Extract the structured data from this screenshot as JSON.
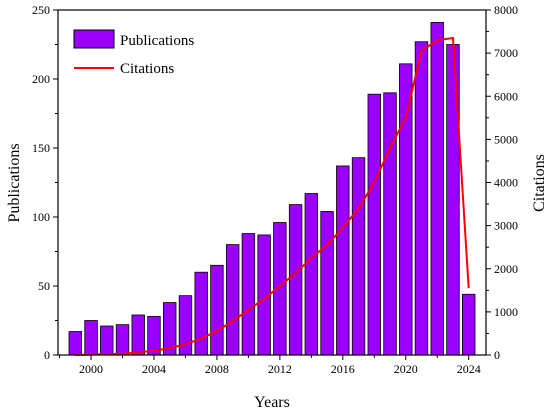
{
  "chart_data": {
    "type": "bar",
    "title": "",
    "xlabel": "Years",
    "ylabel": "Publications",
    "y2label": "Citations",
    "x": [
      1999,
      2000,
      2001,
      2002,
      2003,
      2004,
      2005,
      2006,
      2007,
      2008,
      2009,
      2010,
      2011,
      2012,
      2013,
      2014,
      2015,
      2016,
      2017,
      2018,
      2019,
      2020,
      2021,
      2022,
      2023,
      2024
    ],
    "xlim": [
      1997.9,
      2025.1
    ],
    "ylim": [
      0,
      250
    ],
    "y2lim": [
      0,
      8000
    ],
    "xticks": [
      2000,
      2004,
      2008,
      2012,
      2016,
      2020,
      2024
    ],
    "yticks": [
      0,
      50,
      100,
      150,
      200,
      250
    ],
    "y2ticks": [
      0,
      1000,
      2000,
      3000,
      4000,
      5000,
      6000,
      7000,
      8000
    ],
    "grid": false,
    "legend_position": "top-left",
    "series": [
      {
        "name": "Publications",
        "type": "bar",
        "axis": "left",
        "color": "#9b00ff",
        "values": [
          17,
          25,
          21,
          22,
          29,
          28,
          38,
          43,
          60,
          65,
          80,
          88,
          87,
          96,
          109,
          117,
          104,
          137,
          143,
          189,
          190,
          211,
          227,
          241,
          225,
          44
        ]
      },
      {
        "name": "Citations",
        "type": "line",
        "axis": "right",
        "color": "#ff0000",
        "values": [
          0,
          10,
          20,
          30,
          60,
          100,
          160,
          250,
          380,
          560,
          780,
          1050,
          1300,
          1600,
          1900,
          2250,
          2550,
          2950,
          3400,
          4000,
          4800,
          5500,
          7050,
          7300,
          7350,
          1550
        ]
      }
    ]
  }
}
